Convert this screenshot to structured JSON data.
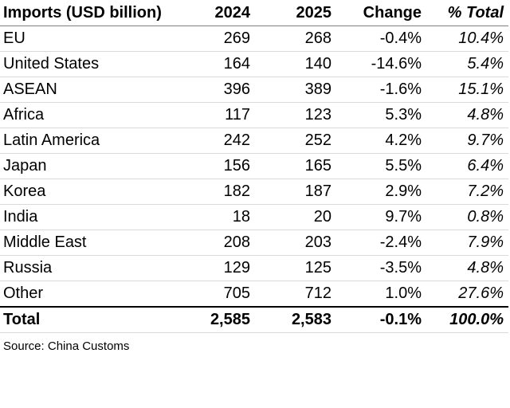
{
  "table": {
    "headers": {
      "label": "Imports (USD billion)",
      "year1": "2024",
      "year2": "2025",
      "change": "Change",
      "share": "% Total"
    },
    "rows": [
      {
        "label": "EU",
        "year1": "269",
        "year2": "268",
        "change": "-0.4%",
        "share": "10.4%"
      },
      {
        "label": "United States",
        "year1": "164",
        "year2": "140",
        "change": "-14.6%",
        "share": "5.4%"
      },
      {
        "label": "ASEAN",
        "year1": "396",
        "year2": "389",
        "change": "-1.6%",
        "share": "15.1%"
      },
      {
        "label": "Africa",
        "year1": "117",
        "year2": "123",
        "change": "5.3%",
        "share": "4.8%"
      },
      {
        "label": "Latin America",
        "year1": "242",
        "year2": "252",
        "change": "4.2%",
        "share": "9.7%"
      },
      {
        "label": "Japan",
        "year1": "156",
        "year2": "165",
        "change": "5.5%",
        "share": "6.4%"
      },
      {
        "label": "Korea",
        "year1": "182",
        "year2": "187",
        "change": "2.9%",
        "share": "7.2%"
      },
      {
        "label": "India",
        "year1": "18",
        "year2": "20",
        "change": "9.7%",
        "share": "0.8%"
      },
      {
        "label": "Middle East",
        "year1": "208",
        "year2": "203",
        "change": "-2.4%",
        "share": "7.9%"
      },
      {
        "label": "Russia",
        "year1": "129",
        "year2": "125",
        "change": "-3.5%",
        "share": "4.8%"
      },
      {
        "label": "Other",
        "year1": "705",
        "year2": "712",
        "change": "1.0%",
        "share": "27.6%"
      }
    ],
    "total": {
      "label": "Total",
      "year1": "2,585",
      "year2": "2,583",
      "change": "-0.1%",
      "share": "100.0%"
    }
  },
  "source": "Source: China Customs"
}
